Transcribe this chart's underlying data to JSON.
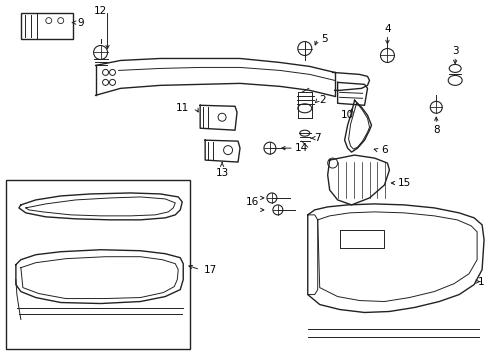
{
  "bg_color": "#ffffff",
  "line_color": "#222222",
  "label_color": "#000000",
  "fig_w": 4.89,
  "fig_h": 3.6,
  "dpi": 100
}
